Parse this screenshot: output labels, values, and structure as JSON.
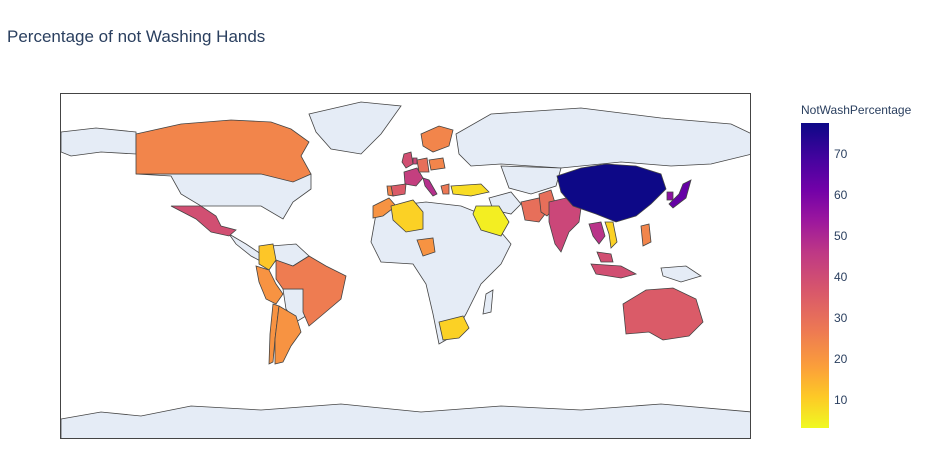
{
  "title": "Percentage of not Washing Hands",
  "colorbar": {
    "title": "NotWashPercentage",
    "min": 3,
    "max": 77,
    "ticks": [
      "10",
      "20",
      "30",
      "40",
      "50",
      "60",
      "70"
    ],
    "scale": [
      "#f0f921",
      "#fdca26",
      "#fb9f3a",
      "#ed7953",
      "#d8576b",
      "#bd3786",
      "#9c179e",
      "#7201a8",
      "#46039f",
      "#0d0887"
    ]
  },
  "colors": {
    "land": "#e5ecf6",
    "border": "#444444",
    "background": "#ffffff"
  },
  "countries": [
    {
      "name": "Canada",
      "value": 25
    },
    {
      "name": "Mexico",
      "value": 38
    },
    {
      "name": "Colombia",
      "value": 12
    },
    {
      "name": "Peru",
      "value": 22
    },
    {
      "name": "Brazil",
      "value": 27
    },
    {
      "name": "Chile",
      "value": 22
    },
    {
      "name": "Argentina",
      "value": 22
    },
    {
      "name": "United Kingdom",
      "value": 38
    },
    {
      "name": "France",
      "value": 42
    },
    {
      "name": "Spain",
      "value": 35
    },
    {
      "name": "Portugal",
      "value": 25
    },
    {
      "name": "Italy",
      "value": 46
    },
    {
      "name": "Germany",
      "value": 30
    },
    {
      "name": "Netherlands",
      "value": 40
    },
    {
      "name": "Sweden",
      "value": 25
    },
    {
      "name": "Finland",
      "value": 25
    },
    {
      "name": "Norway",
      "value": 25
    },
    {
      "name": "Poland",
      "value": 25
    },
    {
      "name": "Greece",
      "value": 28
    },
    {
      "name": "Turkey",
      "value": 8
    },
    {
      "name": "Morocco",
      "value": 22
    },
    {
      "name": "Algeria",
      "value": 10
    },
    {
      "name": "Nigeria",
      "value": 22
    },
    {
      "name": "Saudi Arabia",
      "value": 5
    },
    {
      "name": "Iran",
      "value": 30
    },
    {
      "name": "Pakistan",
      "value": 30
    },
    {
      "name": "India",
      "value": 40
    },
    {
      "name": "China",
      "value": 77
    },
    {
      "name": "Japan",
      "value": 63
    },
    {
      "name": "South Korea",
      "value": 55
    },
    {
      "name": "Thailand",
      "value": 45
    },
    {
      "name": "Vietnam",
      "value": 10
    },
    {
      "name": "Malaysia",
      "value": 38
    },
    {
      "name": "Indonesia",
      "value": 38
    },
    {
      "name": "Philippines",
      "value": 25
    },
    {
      "name": "Australia",
      "value": 35
    },
    {
      "name": "South Africa",
      "value": 10
    }
  ]
}
